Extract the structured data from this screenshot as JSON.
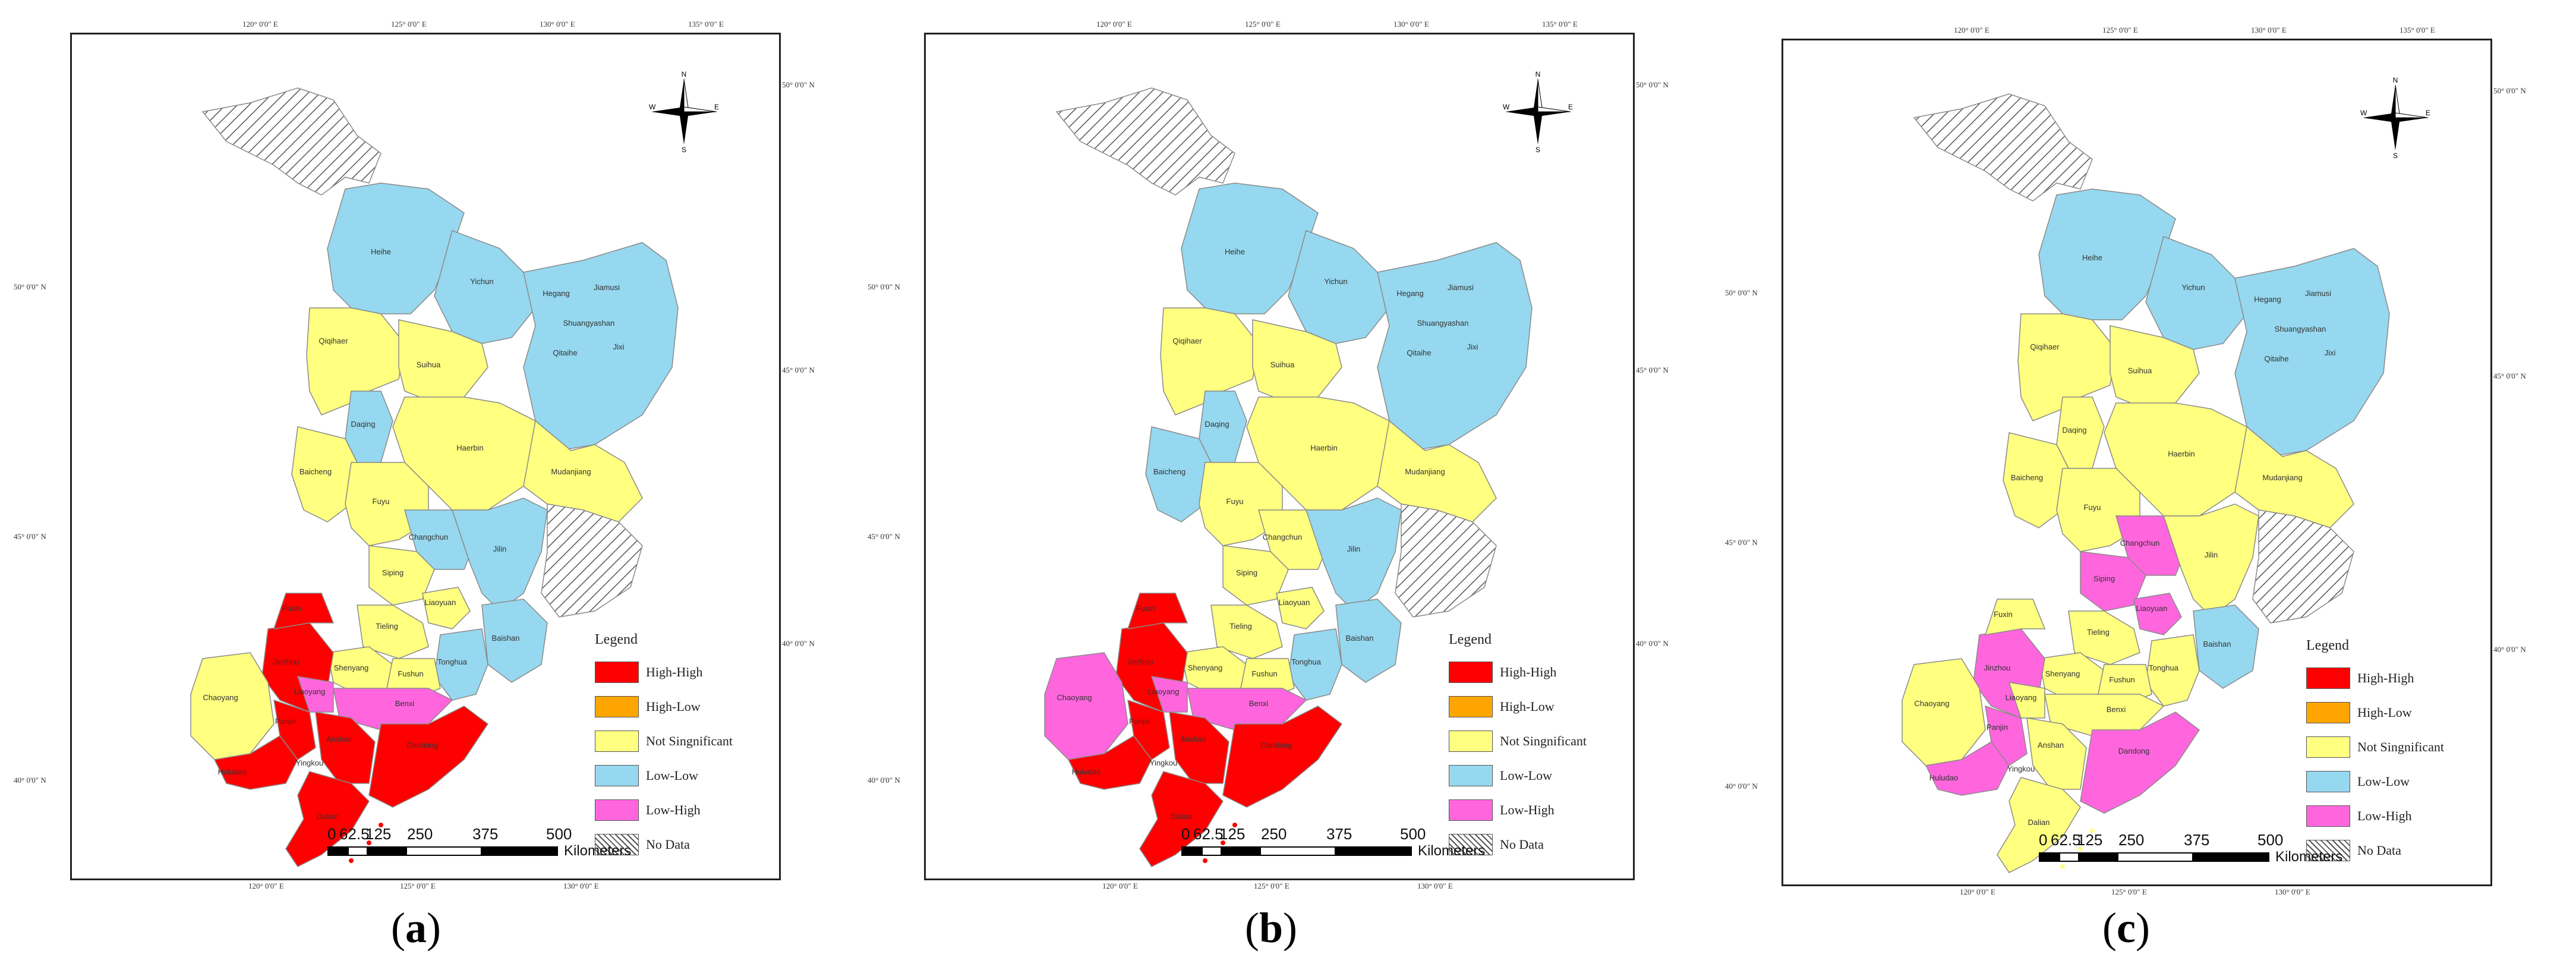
{
  "colors": {
    "high_high": "#ff0000",
    "high_low": "#ffa500",
    "not_significant": "#ffff80",
    "low_low": "#96d8ef",
    "low_high": "#ff66dd",
    "no_data": "#ffffff"
  },
  "legend": {
    "title": "Legend",
    "items": [
      {
        "key": "high_high",
        "label": "High-High"
      },
      {
        "key": "high_low",
        "label": "High-Low"
      },
      {
        "key": "not_significant",
        "label": "Not Singnificant"
      },
      {
        "key": "low_low",
        "label": "Low-Low"
      },
      {
        "key": "low_high",
        "label": "Low-High"
      },
      {
        "key": "no_data",
        "label": "No Data"
      }
    ]
  },
  "scale": {
    "ticks": [
      "0",
      "62.5",
      "125",
      "250",
      "375",
      "500"
    ],
    "unit": "Kilometers"
  },
  "north_arrow": {
    "n": "N",
    "s": "S",
    "e": "E",
    "w": "W"
  },
  "coordinates": {
    "top_lon": [
      "120° 0'0\" E",
      "125° 0'0\" E",
      "130° 0'0\" E",
      "135° 0'0\" E"
    ],
    "bottom_lon": [
      "120° 0'0\" E",
      "125° 0'0\" E",
      "130° 0'0\" E"
    ],
    "left_lat": [
      "50° 0'0\" N",
      "45° 0'0\" N",
      "40° 0'0\" N"
    ],
    "right_lat": [
      "50° 0'0\" N",
      "45° 0'0\" N",
      "40° 0'0\" N"
    ]
  },
  "place_names": [
    "Heihe",
    "Yichun",
    "Hegang",
    "Jiamusi",
    "Shuangyashan",
    "Qitaihe",
    "Jixi",
    "Qiqihaer",
    "Suihua",
    "Daqing",
    "Haerbin",
    "Mudanjiang",
    "Baicheng",
    "Fuyu",
    "Changchun",
    "Jilin",
    "Siping",
    "Liaoyuan",
    "Tieling",
    "Baishan",
    "Shenyang",
    "Fushun",
    "Tonghua",
    "Benxi",
    "Chaoyang",
    "Fuxin",
    "Jinzhou",
    "Anshan",
    "Dandong",
    "Dalian",
    "Huludao",
    "Yingkou",
    "Liaoyang",
    "Panjin"
  ],
  "panels": [
    {
      "caption_letter": "a",
      "regions": {
        "northwest": "no_data",
        "heihe": "low_low",
        "yichun": "low_low",
        "east_ne": "low_low",
        "qiqihaer": "not_significant",
        "suihua": "not_significant",
        "daqing": "low_low",
        "haerbin": "not_significant",
        "mudanjiang": "not_significant",
        "baicheng": "not_significant",
        "fuyu": "not_significant",
        "changchun": "low_low",
        "jilin": "low_low",
        "yanbian": "no_data",
        "siping": "not_significant",
        "liaoyuan": "not_significant",
        "tieling": "not_significant",
        "baishan": "low_low",
        "tonghua": "low_low",
        "shenyang": "not_significant",
        "fushun": "not_significant",
        "benxi": "low_high",
        "dandong": "high_high",
        "anshan": "high_high",
        "dalian": "high_high",
        "jinzhou": "high_high",
        "fuxin": "high_high",
        "chaoyang": "not_significant",
        "huludao": "high_high",
        "panjin": "high_high",
        "liaoyang": "low_high"
      }
    },
    {
      "caption_letter": "b",
      "regions": {
        "northwest": "no_data",
        "heihe": "low_low",
        "yichun": "low_low",
        "east_ne": "low_low",
        "qiqihaer": "not_significant",
        "suihua": "not_significant",
        "daqing": "low_low",
        "haerbin": "not_significant",
        "mudanjiang": "not_significant",
        "baicheng": "low_low",
        "fuyu": "not_significant",
        "changchun": "not_significant",
        "jilin": "low_low",
        "yanbian": "no_data",
        "siping": "not_significant",
        "liaoyuan": "not_significant",
        "tieling": "not_significant",
        "baishan": "low_low",
        "tonghua": "low_low",
        "shenyang": "not_significant",
        "fushun": "not_significant",
        "benxi": "low_high",
        "dandong": "high_high",
        "anshan": "high_high",
        "dalian": "high_high",
        "jinzhou": "high_high",
        "fuxin": "high_high",
        "chaoyang": "low_high",
        "huludao": "high_high",
        "panjin": "high_high",
        "liaoyang": "low_high"
      }
    },
    {
      "caption_letter": "c",
      "regions": {
        "northwest": "no_data",
        "heihe": "low_low",
        "yichun": "low_low",
        "east_ne": "low_low",
        "qiqihaer": "not_significant",
        "suihua": "not_significant",
        "daqing": "not_significant",
        "haerbin": "not_significant",
        "mudanjiang": "not_significant",
        "baicheng": "not_significant",
        "fuyu": "not_significant",
        "changchun": "low_high",
        "jilin": "not_significant",
        "yanbian": "no_data",
        "siping": "low_high",
        "liaoyuan": "low_high",
        "tieling": "not_significant",
        "baishan": "low_low",
        "tonghua": "not_significant",
        "shenyang": "not_significant",
        "fushun": "not_significant",
        "benxi": "not_significant",
        "dandong": "low_high",
        "anshan": "not_significant",
        "dalian": "not_significant",
        "jinzhou": "low_high",
        "fuxin": "not_significant",
        "chaoyang": "not_significant",
        "huludao": "low_high",
        "panjin": "low_high",
        "liaoyang": "not_significant"
      }
    }
  ]
}
